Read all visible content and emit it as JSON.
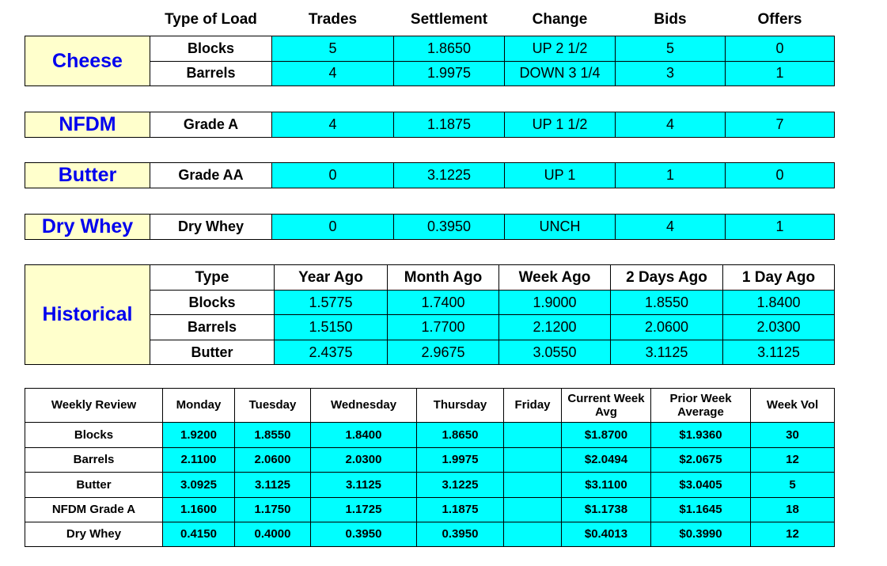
{
  "market": {
    "header": [
      "Type of Load",
      "Trades",
      "Settlement",
      "Change",
      "Bids",
      "Offers"
    ],
    "groups": [
      {
        "label": "Cheese",
        "rows": [
          [
            "Blocks",
            "5",
            "1.8650",
            "UP 2 1/2",
            "5",
            "0"
          ],
          [
            "Barrels",
            "4",
            "1.9975",
            "DOWN 3 1/4",
            "3",
            "1"
          ]
        ]
      },
      {
        "label": "NFDM",
        "rows": [
          [
            "Grade A",
            "4",
            "1.1875",
            "UP 1 1/2",
            "4",
            "7"
          ]
        ]
      },
      {
        "label": "Butter",
        "rows": [
          [
            "Grade AA",
            "0",
            "3.1225",
            "UP 1",
            "1",
            "0"
          ]
        ]
      },
      {
        "label": "Dry Whey",
        "rows": [
          [
            "Dry Whey",
            "0",
            "0.3950",
            "UNCH",
            "4",
            "1"
          ]
        ]
      }
    ]
  },
  "historical": {
    "label": "Historical",
    "header": [
      "Type",
      "Year Ago",
      "Month Ago",
      "Week Ago",
      "2 Days Ago",
      "1 Day Ago"
    ],
    "rows": [
      [
        "Blocks",
        "1.5775",
        "1.7400",
        "1.9000",
        "1.8550",
        "1.8400"
      ],
      [
        "Barrels",
        "1.5150",
        "1.7700",
        "2.1200",
        "2.0600",
        "2.0300"
      ],
      [
        "Butter",
        "2.4375",
        "2.9675",
        "3.0550",
        "3.1125",
        "3.1125"
      ]
    ]
  },
  "weekly": {
    "header": [
      "Weekly Review",
      "Monday",
      "Tuesday",
      "Wednesday",
      "Thursday",
      "Friday",
      "Current Week Avg",
      "Prior Week Average",
      "Week Vol"
    ],
    "rows": [
      [
        "Blocks",
        "1.9200",
        "1.8550",
        "1.8400",
        "1.8650",
        null,
        "$1.8700",
        "$1.9360",
        "30"
      ],
      [
        "Barrels",
        "2.1100",
        "2.0600",
        "2.0300",
        "1.9975",
        null,
        "$2.0494",
        "$2.0675",
        "12"
      ],
      [
        "Butter",
        "3.0925",
        "3.1125",
        "3.1125",
        "3.1225",
        null,
        "$3.1100",
        "$3.0405",
        "5"
      ],
      [
        "NFDM Grade A",
        "1.1600",
        "1.1750",
        "1.1725",
        "1.1875",
        null,
        "$1.1738",
        "$1.1645",
        "18"
      ],
      [
        "Dry Whey",
        "0.4150",
        "0.4000",
        "0.3950",
        "0.3950",
        null,
        "$0.4013",
        "$0.3990",
        "12"
      ]
    ]
  }
}
